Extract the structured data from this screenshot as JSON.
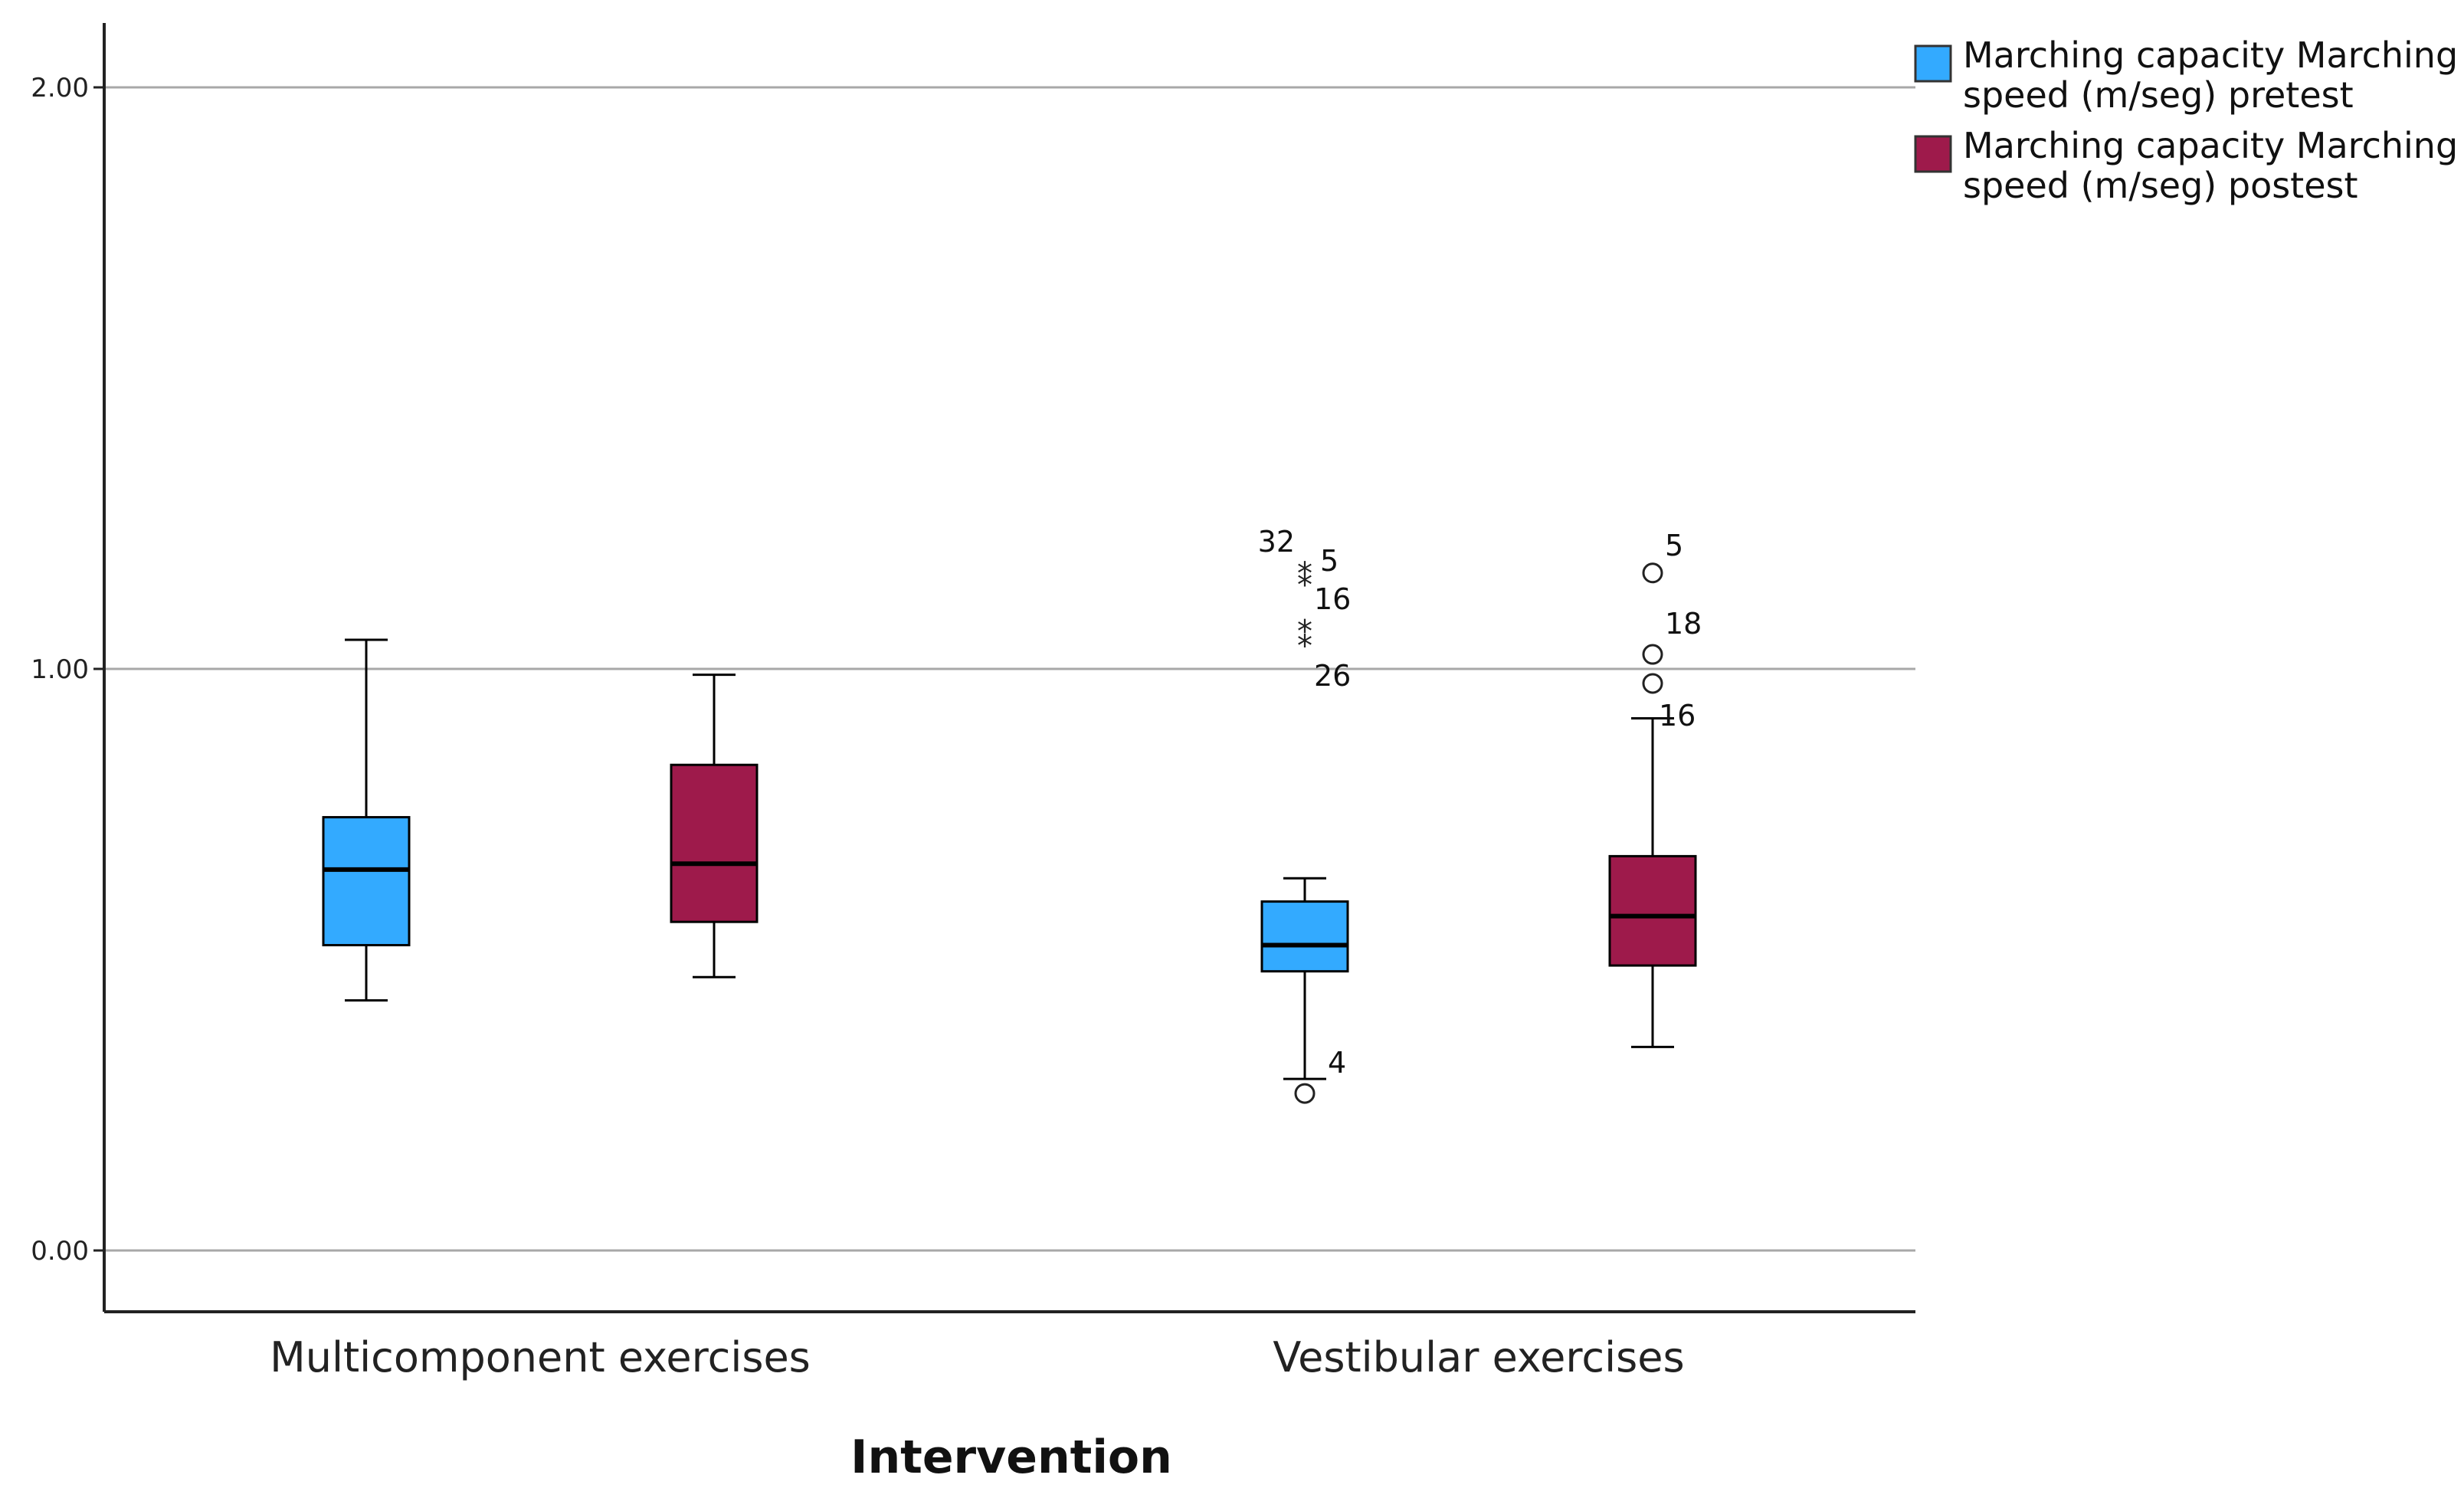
{
  "chart_data": {
    "type": "boxplot",
    "title": "",
    "xlabel": "Intervention",
    "ylabel": "",
    "ylim": [
      -0.1,
      2.1
    ],
    "yticks": [
      0.0,
      1.0,
      2.0
    ],
    "ytick_labels": [
      "0.00",
      "1.00",
      "2.00"
    ],
    "grid": true,
    "legend_position": "top-right",
    "categories": [
      "Multicomponent exercises",
      "Vestibular exercises"
    ],
    "series": [
      {
        "name": "Marching capacity Marching speed (m/seg) pretest",
        "legend_lines": [
          "Marching capacity Marching",
          "speed (m/seg) pretest"
        ],
        "color": "#33AAFF",
        "boxes": [
          {
            "whisker_low": 0.43,
            "q1": 0.525,
            "median": 0.655,
            "q3": 0.745,
            "whisker_high": 1.05,
            "outliers": []
          },
          {
            "whisker_low": 0.295,
            "q1": 0.48,
            "median": 0.525,
            "q3": 0.6,
            "whisker_high": 0.64,
            "outliers": [
              {
                "value": 0.27,
                "marker": "circle",
                "label": "4"
              },
              {
                "value": 1.165,
                "marker": "star",
                "label": "32"
              },
              {
                "value": 1.145,
                "marker": "star",
                "label": "5"
              },
              {
                "value": 1.065,
                "marker": "star",
                "label": "16"
              },
              {
                "value": 1.04,
                "marker": "star",
                "label": "26"
              }
            ]
          }
        ]
      },
      {
        "name": "Marching capacity Marching speed (m/seg) postest",
        "legend_lines": [
          "Marching capacity Marching",
          "speed (m/seg) postest"
        ],
        "color": "#9E1A4B",
        "boxes": [
          {
            "whisker_low": 0.47,
            "q1": 0.565,
            "median": 0.665,
            "q3": 0.835,
            "whisker_high": 0.99,
            "outliers": []
          },
          {
            "whisker_low": 0.35,
            "q1": 0.49,
            "median": 0.575,
            "q3": 0.678,
            "whisker_high": 0.915,
            "outliers": [
              {
                "value": 1.165,
                "marker": "circle",
                "label": "5"
              },
              {
                "value": 1.025,
                "marker": "circle",
                "label": "18"
              },
              {
                "value": 0.975,
                "marker": "circle",
                "label": "16"
              }
            ]
          }
        ]
      }
    ]
  }
}
